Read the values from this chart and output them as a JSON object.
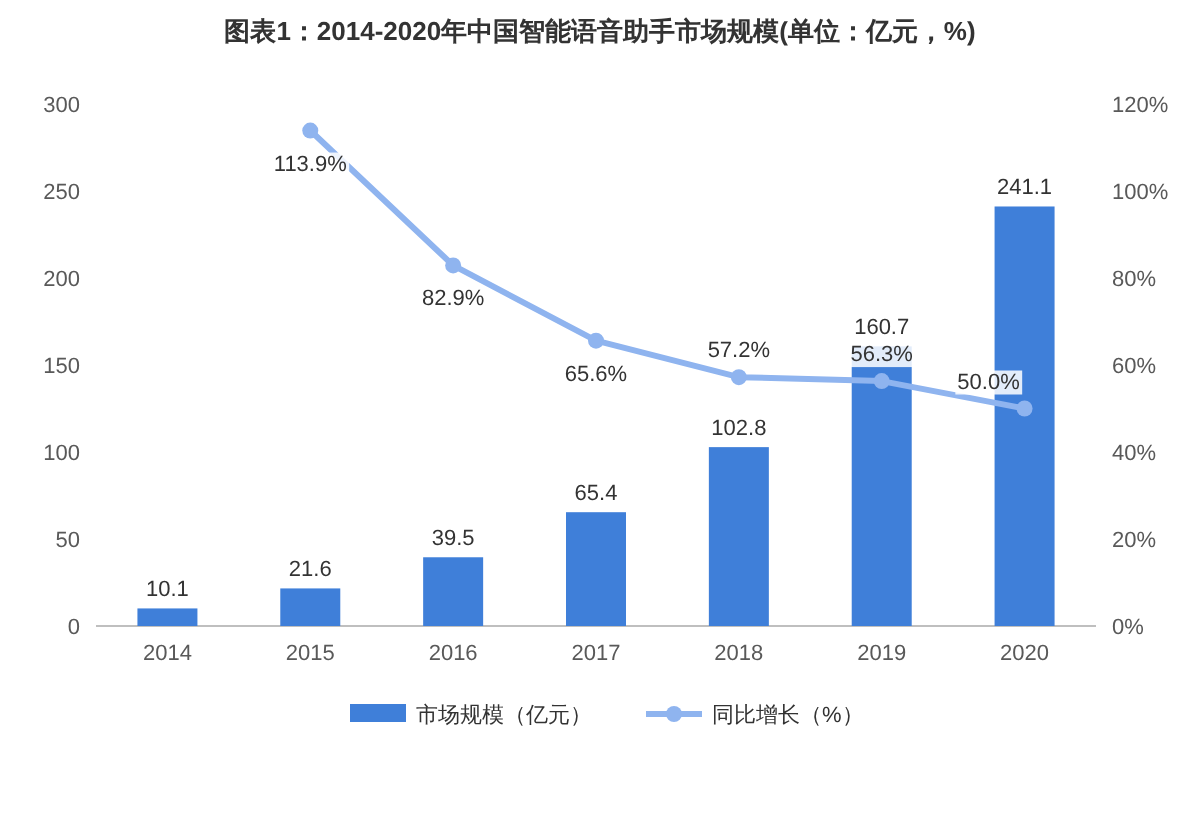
{
  "chart_data": {
    "type": "bar",
    "title": "图表1：2014-2020年中国智能语音助手市场规模(单位：亿元，%)",
    "categories": [
      "2014",
      "2015",
      "2016",
      "2017",
      "2018",
      "2019",
      "2020"
    ],
    "series": [
      {
        "name": "市场规模（亿元）",
        "color": "#3f7fd9",
        "values": [
          10.1,
          21.6,
          39.5,
          65.4,
          102.8,
          160.7,
          241.1
        ],
        "value_labels": [
          "10.1",
          "21.6",
          "39.5",
          "65.4",
          "102.8",
          "160.7",
          "241.1"
        ]
      },
      {
        "name": "同比增长（%）",
        "type": "line",
        "axis": "y2",
        "color": "#8fb4ef",
        "values": [
          null,
          113.9,
          82.9,
          65.6,
          57.2,
          56.3,
          50.0
        ],
        "value_labels": [
          null,
          "113.9%",
          "82.9%",
          "65.6%",
          "57.2%",
          "56.3%",
          "50.0%"
        ]
      }
    ],
    "ylim": [
      0,
      300
    ],
    "yticks": [
      0,
      50,
      100,
      150,
      200,
      250,
      300
    ],
    "y2lim": [
      0,
      120
    ],
    "y2ticks": [
      {
        "value": 0,
        "label": "0%"
      },
      {
        "value": 20,
        "label": "20%"
      },
      {
        "value": 40,
        "label": "40%"
      },
      {
        "value": 60,
        "label": "60%"
      },
      {
        "value": 80,
        "label": "80%"
      },
      {
        "value": 100,
        "label": "100%"
      },
      {
        "value": 120,
        "label": "120%"
      }
    ],
    "marker": "circle",
    "legend": "bottom"
  }
}
